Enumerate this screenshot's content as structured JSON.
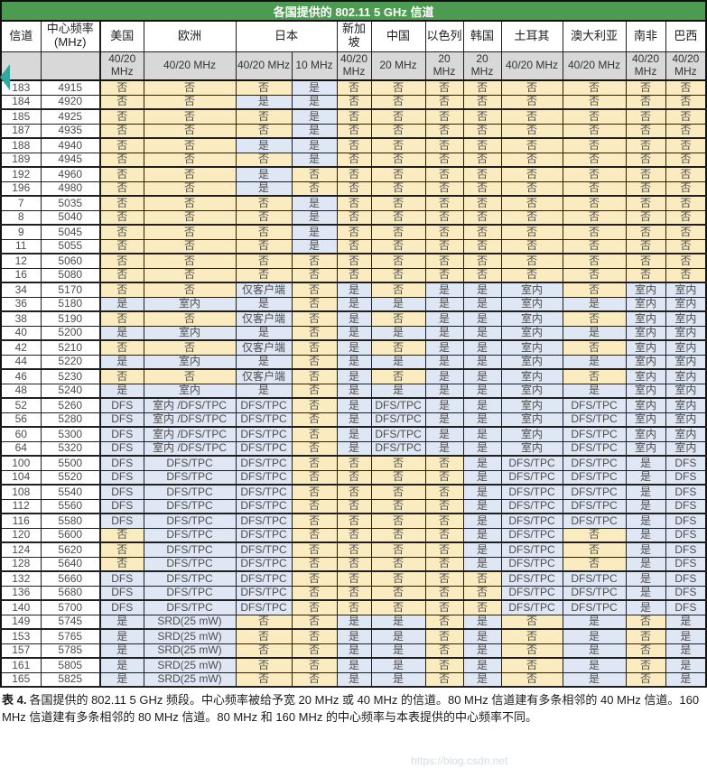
{
  "title": "各国提供的 802.11 5 GHz 信道",
  "watermark": "https://blog.csdn.net",
  "caption": {
    "label": "表 4.",
    "text": "各国提供的 802.11 5 GHz 频段。中心频率被给予宽 20 MHz 或 40 MHz 的信道。80 MHz 信道建有多条相邻的 40 MHz 信道。160 MHz 信道建有多条相邻的 80 MHz 信道。80 MHz 和 160 MHz 的中心频率与本表提供的中心频率不同。"
  },
  "colors": {
    "title_bg": "#4d9a52",
    "band_bg": "#d8d8d8",
    "no_bg": "#faecc0",
    "yes_bg": "#dee7f3",
    "marker": "#2fa89e"
  },
  "table": {
    "corner_headers": [
      "信道",
      "中心频率 (MHz)"
    ],
    "country_columns": [
      {
        "label": "美国",
        "bands": [
          "40/20 MHz"
        ]
      },
      {
        "label": "欧洲",
        "bands": [
          "40/20 MHz"
        ]
      },
      {
        "label": "日本",
        "bands": [
          "40/20 MHz",
          "10 MHz"
        ]
      },
      {
        "label": "新加坡",
        "bands": [
          "40/20 MHz"
        ]
      },
      {
        "label": "中国",
        "bands": [
          "20 MHz"
        ]
      },
      {
        "label": "以色列",
        "bands": [
          "20 MHz"
        ]
      },
      {
        "label": "韩国",
        "bands": [
          "20 MHz"
        ]
      },
      {
        "label": "土耳其",
        "bands": [
          "40/20 MHz"
        ]
      },
      {
        "label": "澳大利亚",
        "bands": [
          "40/20 MHz"
        ]
      },
      {
        "label": "南非",
        "bands": [
          "40/20 MHz"
        ]
      },
      {
        "label": "巴西",
        "bands": [
          "40/20 MHz"
        ]
      }
    ],
    "rows": [
      {
        "channel": "183",
        "freq": "4915",
        "values": [
          "否",
          "否",
          "否",
          "是",
          "否",
          "否",
          "否",
          "否",
          "否",
          "否",
          "否",
          "否"
        ]
      },
      {
        "channel": "184",
        "freq": "4920",
        "values": [
          "否",
          "否",
          "是",
          "是",
          "否",
          "否",
          "否",
          "否",
          "否",
          "否",
          "否",
          "否"
        ]
      },
      {
        "channel": "185",
        "freq": "4925",
        "values": [
          "否",
          "否",
          "否",
          "是",
          "否",
          "否",
          "否",
          "否",
          "否",
          "否",
          "否",
          "否"
        ]
      },
      {
        "channel": "187",
        "freq": "4935",
        "values": [
          "否",
          "否",
          "否",
          "是",
          "否",
          "否",
          "否",
          "否",
          "否",
          "否",
          "否",
          "否"
        ]
      },
      {
        "channel": "188",
        "freq": "4940",
        "values": [
          "否",
          "否",
          "是",
          "是",
          "否",
          "否",
          "否",
          "否",
          "否",
          "否",
          "否",
          "否"
        ]
      },
      {
        "channel": "189",
        "freq": "4945",
        "values": [
          "否",
          "否",
          "否",
          "是",
          "否",
          "否",
          "否",
          "否",
          "否",
          "否",
          "否",
          "否"
        ]
      },
      {
        "channel": "192",
        "freq": "4960",
        "values": [
          "否",
          "否",
          "是",
          "否",
          "否",
          "否",
          "否",
          "否",
          "否",
          "否",
          "否",
          "否"
        ]
      },
      {
        "channel": "196",
        "freq": "4980",
        "values": [
          "否",
          "否",
          "是",
          "否",
          "否",
          "否",
          "否",
          "否",
          "否",
          "否",
          "否",
          "否"
        ]
      },
      {
        "channel": "7",
        "freq": "5035",
        "values": [
          "否",
          "否",
          "否",
          "是",
          "否",
          "否",
          "否",
          "否",
          "否",
          "否",
          "否",
          "否"
        ]
      },
      {
        "channel": "8",
        "freq": "5040",
        "values": [
          "否",
          "否",
          "否",
          "是",
          "否",
          "否",
          "否",
          "否",
          "否",
          "否",
          "否",
          "否"
        ]
      },
      {
        "channel": "9",
        "freq": "5045",
        "values": [
          "否",
          "否",
          "否",
          "是",
          "否",
          "否",
          "否",
          "否",
          "否",
          "否",
          "否",
          "否"
        ]
      },
      {
        "channel": "11",
        "freq": "5055",
        "values": [
          "否",
          "否",
          "否",
          "是",
          "否",
          "否",
          "否",
          "否",
          "否",
          "否",
          "否",
          "否"
        ]
      },
      {
        "channel": "12",
        "freq": "5060",
        "values": [
          "否",
          "否",
          "否",
          "否",
          "否",
          "否",
          "否",
          "否",
          "否",
          "否",
          "否",
          "否"
        ]
      },
      {
        "channel": "16",
        "freq": "5080",
        "values": [
          "否",
          "否",
          "否",
          "否",
          "否",
          "否",
          "否",
          "否",
          "否",
          "否",
          "否",
          "否"
        ]
      },
      {
        "channel": "34",
        "freq": "5170",
        "values": [
          "否",
          "否",
          "仅客户端",
          "否",
          "是",
          "否",
          "是",
          "是",
          "室内",
          "否",
          "室内",
          "室内"
        ]
      },
      {
        "channel": "36",
        "freq": "5180",
        "values": [
          "是",
          "室内",
          "是",
          "否",
          "是",
          "是",
          "是",
          "是",
          "室内",
          "是",
          "室内",
          "室内"
        ]
      },
      {
        "channel": "38",
        "freq": "5190",
        "values": [
          "否",
          "否",
          "仅客户端",
          "否",
          "是",
          "否",
          "是",
          "是",
          "室内",
          "否",
          "室内",
          "室内"
        ]
      },
      {
        "channel": "40",
        "freq": "5200",
        "values": [
          "是",
          "室内",
          "是",
          "否",
          "是",
          "是",
          "是",
          "是",
          "室内",
          "是",
          "室内",
          "室内"
        ]
      },
      {
        "channel": "42",
        "freq": "5210",
        "values": [
          "否",
          "否",
          "仅客户端",
          "否",
          "是",
          "否",
          "是",
          "是",
          "室内",
          "否",
          "室内",
          "室内"
        ]
      },
      {
        "channel": "44",
        "freq": "5220",
        "values": [
          "是",
          "室内",
          "是",
          "否",
          "是",
          "是",
          "是",
          "是",
          "室内",
          "是",
          "室内",
          "室内"
        ]
      },
      {
        "channel": "46",
        "freq": "5230",
        "values": [
          "否",
          "否",
          "仅客户端",
          "否",
          "是",
          "否",
          "是",
          "是",
          "室内",
          "否",
          "室内",
          "室内"
        ]
      },
      {
        "channel": "48",
        "freq": "5240",
        "values": [
          "是",
          "室内",
          "是",
          "否",
          "是",
          "是",
          "是",
          "是",
          "室内",
          "是",
          "室内",
          "室内"
        ]
      },
      {
        "channel": "52",
        "freq": "5260",
        "values": [
          "DFS",
          "室内 /DFS/TPC",
          "DFS/TPC",
          "否",
          "是",
          "DFS/TPC",
          "是",
          "是",
          "室内",
          "DFS/TPC",
          "室内",
          "室内"
        ]
      },
      {
        "channel": "56",
        "freq": "5280",
        "values": [
          "DFS",
          "室内 /DFS/TPC",
          "DFS/TPC",
          "否",
          "是",
          "DFS/TPC",
          "是",
          "是",
          "室内",
          "DFS/TPC",
          "室内",
          "室内"
        ]
      },
      {
        "channel": "60",
        "freq": "5300",
        "values": [
          "DFS",
          "室内 /DFS/TPC",
          "DFS/TPC",
          "否",
          "是",
          "DFS/TPC",
          "是",
          "是",
          "室内",
          "DFS/TPC",
          "室内",
          "室内"
        ]
      },
      {
        "channel": "64",
        "freq": "5320",
        "values": [
          "DFS",
          "室内 /DFS/TPC",
          "DFS/TPC",
          "否",
          "是",
          "DFS/TPC",
          "是",
          "是",
          "室内",
          "DFS/TPC",
          "室内",
          "室内"
        ]
      },
      {
        "channel": "100",
        "freq": "5500",
        "values": [
          "DFS",
          "DFS/TPC",
          "DFS/TPC",
          "否",
          "否",
          "否",
          "否",
          "是",
          "DFS/TPC",
          "DFS/TPC",
          "是",
          "DFS"
        ]
      },
      {
        "channel": "104",
        "freq": "5520",
        "values": [
          "DFS",
          "DFS/TPC",
          "DFS/TPC",
          "否",
          "否",
          "否",
          "否",
          "是",
          "DFS/TPC",
          "DFS/TPC",
          "是",
          "DFS"
        ]
      },
      {
        "channel": "108",
        "freq": "5540",
        "values": [
          "DFS",
          "DFS/TPC",
          "DFS/TPC",
          "否",
          "否",
          "否",
          "否",
          "是",
          "DFS/TPC",
          "DFS/TPC",
          "是",
          "DFS"
        ]
      },
      {
        "channel": "112",
        "freq": "5560",
        "values": [
          "DFS",
          "DFS/TPC",
          "DFS/TPC",
          "否",
          "否",
          "否",
          "否",
          "是",
          "DFS/TPC",
          "DFS/TPC",
          "是",
          "DFS"
        ]
      },
      {
        "channel": "116",
        "freq": "5580",
        "values": [
          "DFS",
          "DFS/TPC",
          "DFS/TPC",
          "否",
          "否",
          "否",
          "否",
          "是",
          "DFS/TPC",
          "DFS/TPC",
          "是",
          "DFS"
        ]
      },
      {
        "channel": "120",
        "freq": "5600",
        "values": [
          "否",
          "DFS/TPC",
          "DFS/TPC",
          "否",
          "否",
          "否",
          "否",
          "是",
          "DFS/TPC",
          "否",
          "是",
          "DFS"
        ]
      },
      {
        "channel": "124",
        "freq": "5620",
        "values": [
          "否",
          "DFS/TPC",
          "DFS/TPC",
          "否",
          "否",
          "否",
          "否",
          "是",
          "DFS/TPC",
          "否",
          "是",
          "DFS"
        ]
      },
      {
        "channel": "128",
        "freq": "5640",
        "values": [
          "否",
          "DFS/TPC",
          "DFS/TPC",
          "否",
          "否",
          "否",
          "否",
          "是",
          "DFS/TPC",
          "否",
          "是",
          "DFS"
        ]
      },
      {
        "channel": "132",
        "freq": "5660",
        "values": [
          "DFS",
          "DFS/TPC",
          "DFS/TPC",
          "否",
          "否",
          "否",
          "否",
          "否",
          "DFS/TPC",
          "DFS/TPC",
          "是",
          "DFS"
        ]
      },
      {
        "channel": "136",
        "freq": "5680",
        "values": [
          "DFS",
          "DFS/TPC",
          "DFS/TPC",
          "否",
          "否",
          "否",
          "否",
          "否",
          "DFS/TPC",
          "DFS/TPC",
          "是",
          "DFS"
        ]
      },
      {
        "channel": "140",
        "freq": "5700",
        "values": [
          "DFS",
          "DFS/TPC",
          "DFS/TPC",
          "否",
          "否",
          "否",
          "否",
          "否",
          "DFS/TPC",
          "DFS/TPC",
          "是",
          "DFS"
        ]
      },
      {
        "channel": "149",
        "freq": "5745",
        "values": [
          "是",
          "SRD(25 mW)",
          "否",
          "否",
          "是",
          "是",
          "否",
          "是",
          "否",
          "是",
          "否",
          "是"
        ]
      },
      {
        "channel": "153",
        "freq": "5765",
        "values": [
          "是",
          "SRD(25 mW)",
          "否",
          "否",
          "是",
          "是",
          "否",
          "是",
          "否",
          "是",
          "否",
          "是"
        ]
      },
      {
        "channel": "157",
        "freq": "5785",
        "values": [
          "是",
          "SRD(25 mW)",
          "否",
          "否",
          "是",
          "是",
          "否",
          "是",
          "否",
          "是",
          "否",
          "是"
        ]
      },
      {
        "channel": "161",
        "freq": "5805",
        "values": [
          "是",
          "SRD(25 mW)",
          "否",
          "否",
          "是",
          "是",
          "否",
          "是",
          "否",
          "是",
          "否",
          "是"
        ]
      },
      {
        "channel": "165",
        "freq": "5825",
        "values": [
          "是",
          "SRD(25 mW)",
          "否",
          "否",
          "是",
          "是",
          "否",
          "是",
          "否",
          "是",
          "否",
          "是"
        ]
      }
    ]
  }
}
